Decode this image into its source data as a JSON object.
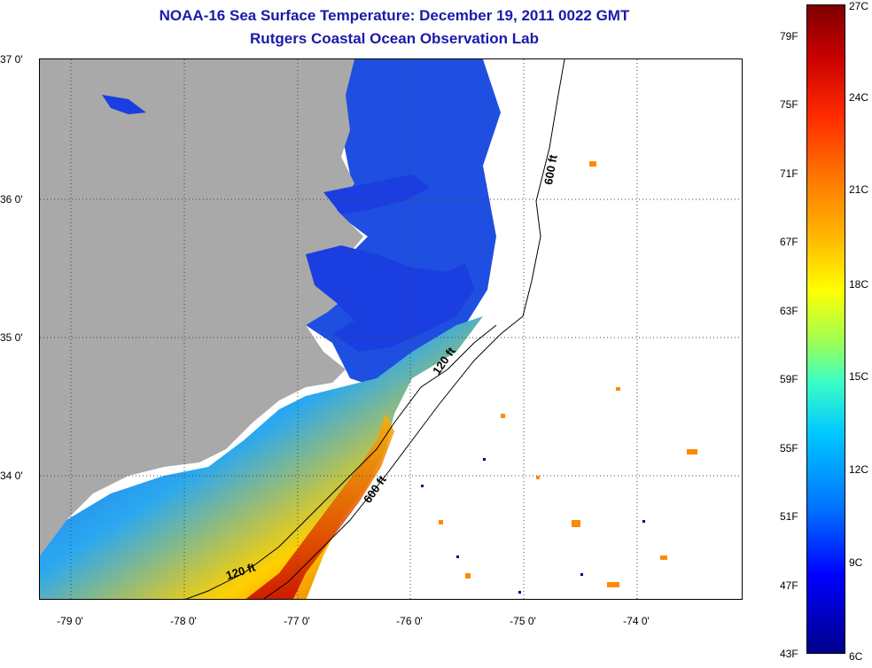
{
  "title": {
    "line1": "NOAA-16 Sea Surface Temperature:  December 19, 2011 0022 GMT",
    "line2": "Rutgers Coastal Ocean Observation Lab"
  },
  "map": {
    "lat_labels": [
      "37 0'",
      "36 0'",
      "35 0'",
      "34 0'"
    ],
    "lon_labels": [
      "-79 0'",
      "-78 0'",
      "-77 0'",
      "-76 0'",
      "-75 0'",
      "-74 0'"
    ],
    "contour_labels": [
      "600 ft",
      "120 ft",
      "600 ft",
      "120 ft"
    ],
    "colors": {
      "land": "#a9a9a9",
      "cloud": "#ffffff",
      "contour": "#000000"
    }
  },
  "colorbar": {
    "fahrenheit_labels": [
      "79F",
      "75F",
      "71F",
      "67F",
      "63F",
      "59F",
      "55F",
      "51F",
      "47F",
      "43F"
    ],
    "celsius_labels": [
      "27C",
      "24C",
      "21C",
      "18C",
      "15C",
      "12C",
      "9C",
      "6C"
    ],
    "range_c": [
      6,
      27
    ],
    "range_f": [
      43,
      81
    ]
  }
}
